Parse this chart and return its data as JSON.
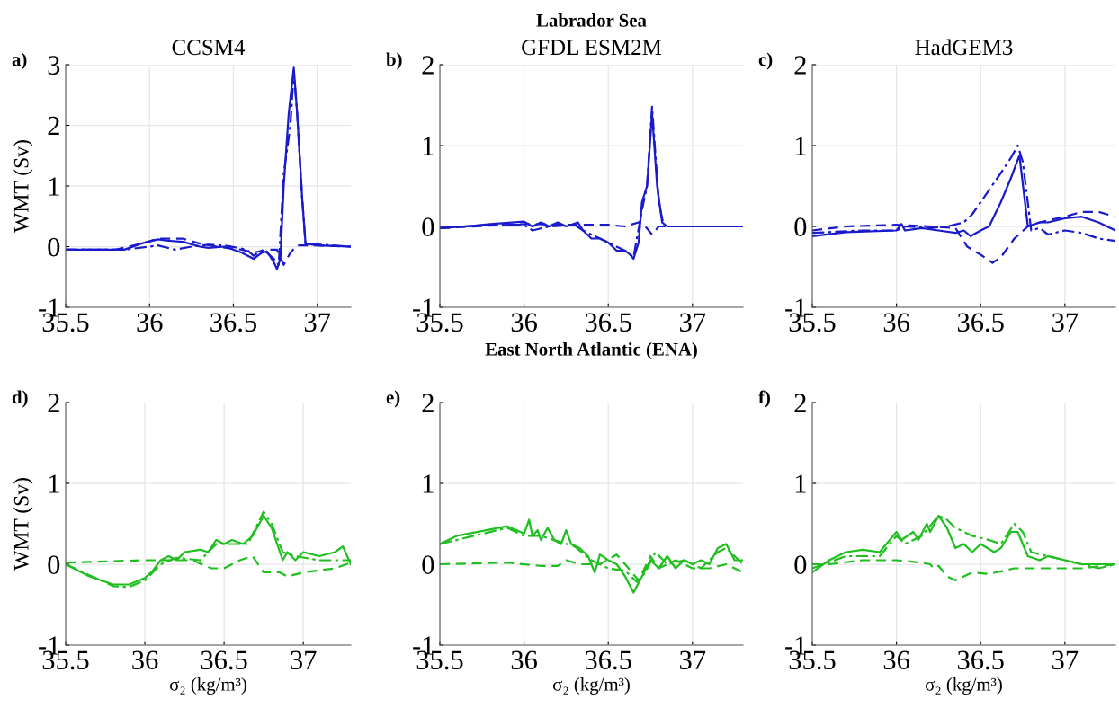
{
  "chart_data": [
    {
      "type": "line",
      "title": "CCSM4",
      "annotations": [
        "a)"
      ],
      "ylabel": "WMT (Sv)",
      "xlim": [
        35.5,
        37.2
      ],
      "ylim": [
        -1,
        3
      ],
      "xticks": [
        35.5,
        36,
        36.5,
        37
      ],
      "yticks": [
        -1,
        0,
        1,
        2,
        3
      ],
      "grid": true,
      "series": [
        {
          "color": "#1a1acd",
          "line_style": "solid",
          "x": [
            35.5,
            35.7,
            35.85,
            35.95,
            36.05,
            36.1,
            36.2,
            36.3,
            36.35,
            36.45,
            36.55,
            36.62,
            36.67,
            36.7,
            36.74,
            36.76,
            36.78,
            36.8,
            36.83,
            36.86,
            36.88,
            36.91,
            36.93,
            37.0,
            37.2
          ],
          "values": [
            -0.05,
            -0.05,
            -0.05,
            0.05,
            0.12,
            0.1,
            0.08,
            0.0,
            -0.02,
            0.0,
            -0.1,
            -0.2,
            -0.1,
            -0.08,
            -0.25,
            -0.37,
            -0.2,
            1.0,
            2.2,
            2.95,
            2.2,
            0.8,
            0.05,
            0.02,
            0.0
          ]
        },
        {
          "color": "#1a1acd",
          "line_style": "dashed",
          "x": [
            35.5,
            35.8,
            35.95,
            36.05,
            36.2,
            36.3,
            36.4,
            36.55,
            36.62,
            36.7,
            36.76,
            36.8,
            36.84,
            36.88,
            37.0,
            37.2
          ],
          "values": [
            -0.05,
            -0.05,
            0.05,
            0.13,
            0.13,
            0.05,
            0.0,
            -0.05,
            -0.1,
            -0.05,
            -0.05,
            -0.3,
            -0.1,
            0.02,
            0.02,
            0.0
          ]
        },
        {
          "color": "#1a1acd",
          "line_style": "dashdot",
          "x": [
            35.5,
            35.85,
            36.0,
            36.05,
            36.15,
            36.25,
            36.35,
            36.45,
            36.58,
            36.62,
            36.68,
            36.74,
            36.77,
            36.8,
            36.84,
            36.86,
            36.88,
            36.91,
            36.93,
            37.2
          ],
          "values": [
            -0.05,
            -0.05,
            0.0,
            0.02,
            -0.05,
            0.0,
            0.03,
            0.02,
            -0.05,
            -0.15,
            -0.05,
            -0.2,
            -0.3,
            1.2,
            2.0,
            2.9,
            2.2,
            0.8,
            0.05,
            0.0
          ]
        }
      ]
    },
    {
      "type": "line",
      "title": "GFDL ESM2M",
      "subtitle": "Labrador Sea",
      "annotations": [
        "b)"
      ],
      "xlim": [
        35.5,
        37.3
      ],
      "ylim": [
        -1,
        2
      ],
      "xticks": [
        35.5,
        36,
        36.5,
        37
      ],
      "yticks": [
        -1,
        0,
        1,
        2
      ],
      "grid": true,
      "series": [
        {
          "color": "#1a1acd",
          "line_style": "solid",
          "x": [
            35.5,
            35.65,
            35.8,
            36.0,
            36.05,
            36.1,
            36.15,
            36.2,
            36.25,
            36.32,
            36.35,
            36.4,
            36.45,
            36.5,
            36.55,
            36.6,
            36.63,
            36.65,
            36.68,
            36.7,
            36.73,
            36.76,
            36.79,
            36.82,
            36.85,
            37.3
          ],
          "values": [
            -0.02,
            0.0,
            0.03,
            0.06,
            0.0,
            0.05,
            0.0,
            0.05,
            0.0,
            0.05,
            -0.05,
            -0.15,
            -0.15,
            -0.2,
            -0.3,
            -0.3,
            -0.35,
            -0.4,
            -0.2,
            0.3,
            0.5,
            1.4,
            0.5,
            0.05,
            0.0,
            0.0
          ]
        },
        {
          "color": "#1a1acd",
          "line_style": "dashed",
          "x": [
            35.5,
            36.0,
            36.3,
            36.5,
            36.6,
            36.68,
            36.72,
            36.76,
            36.8,
            36.85,
            37.3
          ],
          "values": [
            -0.02,
            0.03,
            0.02,
            0.02,
            0.0,
            0.05,
            0.0,
            -0.1,
            0.0,
            0.0,
            0.0
          ]
        },
        {
          "color": "#1a1acd",
          "line_style": "dashdot",
          "x": [
            35.5,
            35.8,
            36.0,
            36.05,
            36.15,
            36.3,
            36.35,
            36.5,
            36.6,
            36.65,
            36.7,
            36.73,
            36.76,
            36.8,
            36.83,
            37.3
          ],
          "values": [
            -0.02,
            0.02,
            0.02,
            -0.05,
            0.0,
            0.02,
            -0.05,
            -0.2,
            -0.3,
            -0.38,
            0.2,
            0.5,
            1.48,
            0.3,
            0.0,
            0.0
          ]
        }
      ]
    },
    {
      "type": "line",
      "title": "HadGEM3",
      "annotations": [
        "c)"
      ],
      "xlim": [
        35.5,
        37.3
      ],
      "ylim": [
        -1,
        2
      ],
      "xticks": [
        35.5,
        36,
        36.5,
        37
      ],
      "yticks": [
        -1,
        0,
        1,
        2
      ],
      "grid": true,
      "series": [
        {
          "color": "#1a1acd",
          "line_style": "solid",
          "x": [
            35.5,
            35.7,
            36.0,
            36.03,
            36.05,
            36.15,
            36.25,
            36.35,
            36.4,
            36.44,
            36.5,
            36.55,
            36.62,
            36.68,
            36.73,
            36.78,
            36.85,
            36.9,
            37.0,
            37.1,
            37.2,
            37.3
          ],
          "values": [
            -0.12,
            -0.07,
            -0.05,
            0.03,
            -0.05,
            -0.02,
            -0.05,
            -0.08,
            -0.05,
            -0.12,
            -0.05,
            0.0,
            0.3,
            0.6,
            0.88,
            0.0,
            0.05,
            0.05,
            0.1,
            0.12,
            0.05,
            -0.05
          ]
        },
        {
          "color": "#1a1acd",
          "line_style": "dashed",
          "x": [
            35.5,
            35.7,
            36.0,
            36.2,
            36.35,
            36.42,
            36.5,
            36.57,
            36.62,
            36.7,
            36.78,
            36.85,
            37.0,
            37.1,
            37.2,
            37.3
          ],
          "values": [
            -0.05,
            0.0,
            0.02,
            0.0,
            -0.02,
            -0.25,
            -0.35,
            -0.45,
            -0.38,
            -0.15,
            0.0,
            0.05,
            0.12,
            0.18,
            0.18,
            0.12
          ]
        },
        {
          "color": "#1a1acd",
          "line_style": "dashdot",
          "x": [
            35.5,
            35.8,
            36.0,
            36.05,
            36.2,
            36.3,
            36.4,
            36.45,
            36.5,
            36.6,
            36.68,
            36.72,
            36.75,
            36.8,
            36.85,
            36.9,
            37.0,
            37.1,
            37.2,
            37.3
          ],
          "values": [
            -0.08,
            -0.05,
            -0.05,
            0.0,
            -0.02,
            0.0,
            0.05,
            0.15,
            0.3,
            0.6,
            0.85,
            1.0,
            0.8,
            -0.05,
            -0.02,
            -0.1,
            -0.05,
            -0.08,
            -0.15,
            -0.18
          ]
        }
      ]
    },
    {
      "type": "line",
      "annotations": [
        "d)"
      ],
      "ylabel": "WMT (Sv)",
      "xlabel": "σ₂ (kg/m³)",
      "xlim": [
        35.5,
        37.3
      ],
      "ylim": [
        -1,
        2
      ],
      "xticks": [
        35.5,
        36,
        36.5,
        37
      ],
      "yticks": [
        -1,
        0,
        1,
        2
      ],
      "grid": true,
      "series": [
        {
          "color": "#1fbf1f",
          "line_style": "solid",
          "x": [
            35.5,
            35.65,
            35.8,
            35.9,
            36.0,
            36.05,
            36.1,
            36.15,
            36.2,
            36.25,
            36.35,
            36.4,
            36.45,
            36.5,
            36.55,
            36.62,
            36.68,
            36.75,
            36.8,
            36.87,
            36.9,
            36.95,
            37.0,
            37.1,
            37.2,
            37.25,
            37.3
          ],
          "values": [
            0.0,
            -0.15,
            -0.25,
            -0.25,
            -0.17,
            -0.08,
            0.05,
            0.1,
            0.05,
            0.15,
            0.18,
            0.15,
            0.3,
            0.25,
            0.3,
            0.25,
            0.35,
            0.6,
            0.45,
            0.05,
            0.15,
            0.05,
            0.15,
            0.1,
            0.15,
            0.22,
            0.0
          ]
        },
        {
          "color": "#1fbf1f",
          "line_style": "dashed",
          "x": [
            35.5,
            36.0,
            36.3,
            36.42,
            36.5,
            36.6,
            36.68,
            36.75,
            36.85,
            36.9,
            37.0,
            37.2,
            37.3
          ],
          "values": [
            0.02,
            0.05,
            0.05,
            -0.05,
            -0.05,
            0.05,
            0.1,
            -0.1,
            -0.1,
            -0.15,
            -0.1,
            -0.05,
            0.02
          ]
        },
        {
          "color": "#1fbf1f",
          "line_style": "dashdot",
          "x": [
            35.5,
            35.8,
            35.9,
            36.0,
            36.1,
            36.2,
            36.35,
            36.45,
            36.55,
            36.65,
            36.75,
            36.8,
            36.87,
            36.95,
            37.1,
            37.3
          ],
          "values": [
            0.0,
            -0.27,
            -0.28,
            -0.2,
            0.0,
            0.08,
            0.05,
            0.25,
            0.25,
            0.25,
            0.65,
            0.5,
            0.15,
            0.1,
            0.05,
            0.05
          ]
        }
      ]
    },
    {
      "type": "line",
      "subtitle": "East North Atlantic (ENA)",
      "annotations": [
        "e)"
      ],
      "xlabel": "σ₂ (kg/m³)",
      "xlim": [
        35.5,
        37.3
      ],
      "ylim": [
        -1,
        2
      ],
      "xticks": [
        35.5,
        36,
        36.5,
        37
      ],
      "yticks": [
        -1,
        0,
        1,
        2
      ],
      "grid": true,
      "series": [
        {
          "color": "#1fbf1f",
          "line_style": "solid",
          "x": [
            35.5,
            35.6,
            35.9,
            36.0,
            36.03,
            36.05,
            36.08,
            36.1,
            36.14,
            36.18,
            36.22,
            36.25,
            36.28,
            36.33,
            36.38,
            36.42,
            36.45,
            36.5,
            36.55,
            36.6,
            36.65,
            36.7,
            36.75,
            36.8,
            36.85,
            36.9,
            36.95,
            37.0,
            37.05,
            37.1,
            37.15,
            37.2,
            37.25,
            37.3
          ],
          "values": [
            0.25,
            0.35,
            0.47,
            0.38,
            0.55,
            0.35,
            0.42,
            0.3,
            0.45,
            0.3,
            0.25,
            0.42,
            0.25,
            0.2,
            0.1,
            -0.1,
            0.12,
            0.05,
            0.0,
            -0.15,
            -0.35,
            -0.15,
            0.05,
            -0.05,
            0.1,
            -0.05,
            0.05,
            0.0,
            0.05,
            0.0,
            0.2,
            0.25,
            0.05,
            0.05
          ]
        },
        {
          "color": "#1fbf1f",
          "line_style": "dashed",
          "x": [
            35.5,
            35.9,
            36.1,
            36.2,
            36.25,
            36.33,
            36.45,
            36.55,
            36.6,
            36.68,
            36.75,
            36.8,
            36.9,
            37.0,
            37.1,
            37.2,
            37.3
          ],
          "values": [
            0.0,
            0.02,
            -0.02,
            -0.02,
            0.05,
            0.0,
            0.0,
            0.12,
            0.0,
            -0.2,
            0.1,
            -0.05,
            0.05,
            -0.05,
            -0.05,
            0.0,
            -0.1
          ]
        },
        {
          "color": "#1fbf1f",
          "line_style": "dashdot",
          "x": [
            35.5,
            35.9,
            36.0,
            36.1,
            36.3,
            36.4,
            36.5,
            36.6,
            36.67,
            36.72,
            36.78,
            36.85,
            36.95,
            37.05,
            37.15,
            37.2,
            37.3
          ],
          "values": [
            0.25,
            0.45,
            0.35,
            0.35,
            0.22,
            0.05,
            -0.05,
            -0.08,
            -0.22,
            -0.1,
            0.15,
            0.0,
            0.05,
            -0.05,
            0.15,
            0.2,
            0.0
          ]
        }
      ]
    },
    {
      "type": "line",
      "annotations": [
        "f)"
      ],
      "xlabel": "σ₂ (kg/m³)",
      "xlim": [
        35.5,
        37.3
      ],
      "ylim": [
        -1,
        2
      ],
      "xticks": [
        35.5,
        36,
        36.5,
        37
      ],
      "yticks": [
        -1,
        0,
        1,
        2
      ],
      "grid": true,
      "series": [
        {
          "color": "#1fbf1f",
          "line_style": "solid",
          "x": [
            35.5,
            35.6,
            35.7,
            35.8,
            35.9,
            36.0,
            36.03,
            36.1,
            36.13,
            36.18,
            36.2,
            36.25,
            36.3,
            36.35,
            36.4,
            36.45,
            36.5,
            36.58,
            36.62,
            36.68,
            36.72,
            36.78,
            36.85,
            36.9,
            37.0,
            37.1,
            37.2,
            37.3
          ],
          "values": [
            -0.1,
            0.05,
            0.15,
            0.18,
            0.15,
            0.4,
            0.3,
            0.4,
            0.3,
            0.5,
            0.4,
            0.6,
            0.45,
            0.2,
            0.25,
            0.15,
            0.25,
            0.15,
            0.2,
            0.4,
            0.4,
            0.1,
            0.05,
            0.1,
            0.05,
            0.0,
            0.0,
            0.0
          ]
        },
        {
          "color": "#1fbf1f",
          "line_style": "dashed",
          "x": [
            35.5,
            35.6,
            35.8,
            36.0,
            36.15,
            36.2,
            36.22,
            36.25,
            36.3,
            36.35,
            36.45,
            36.55,
            36.7,
            36.8,
            36.9,
            37.0,
            37.1,
            37.3
          ],
          "values": [
            0.0,
            0.0,
            0.05,
            0.05,
            0.02,
            0.0,
            -0.05,
            -0.02,
            -0.15,
            -0.2,
            -0.1,
            -0.12,
            -0.05,
            -0.05,
            -0.05,
            -0.05,
            -0.05,
            0.0
          ]
        },
        {
          "color": "#1fbf1f",
          "line_style": "dashdot",
          "x": [
            35.5,
            35.7,
            35.9,
            36.0,
            36.05,
            36.15,
            36.25,
            36.3,
            36.35,
            36.45,
            36.55,
            36.62,
            36.7,
            36.75,
            36.8,
            36.9,
            37.0,
            37.1,
            37.2,
            37.3
          ],
          "values": [
            -0.05,
            0.1,
            0.1,
            0.35,
            0.25,
            0.35,
            0.6,
            0.55,
            0.45,
            0.35,
            0.3,
            0.25,
            0.5,
            0.4,
            0.15,
            0.1,
            0.05,
            0.0,
            -0.05,
            0.0
          ]
        }
      ]
    }
  ]
}
